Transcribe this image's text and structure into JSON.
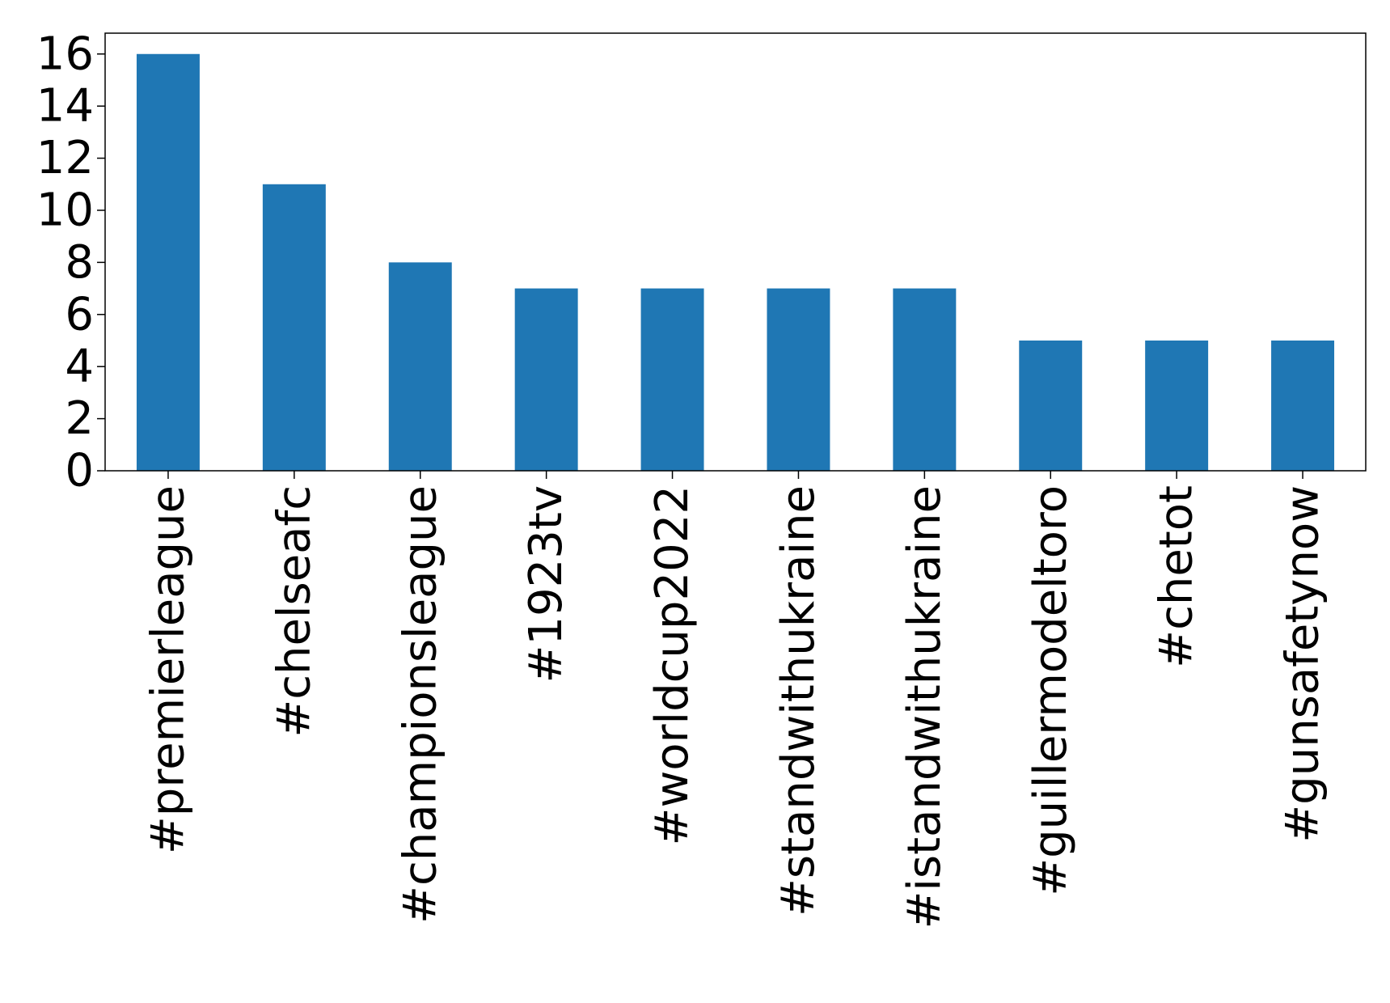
{
  "chart_data": {
    "type": "bar",
    "title": "",
    "xlabel": "",
    "ylabel": "",
    "categories": [
      "#premierleague",
      "#chelseafc",
      "#championsleague",
      "#1923tv",
      "#worldcup2022",
      "#standwithukraine",
      "#istandwithukraine",
      "#guillermodeltoro",
      "#chetot",
      "#gunsafetynow"
    ],
    "values": [
      16,
      11,
      8,
      7,
      7,
      7,
      7,
      5,
      5,
      5
    ],
    "ylim": [
      0,
      16.8
    ],
    "yticks": [
      0,
      2,
      4,
      6,
      8,
      10,
      12,
      14,
      16
    ],
    "grid": false,
    "legend": "none",
    "bar_color": "#1f77b4"
  }
}
